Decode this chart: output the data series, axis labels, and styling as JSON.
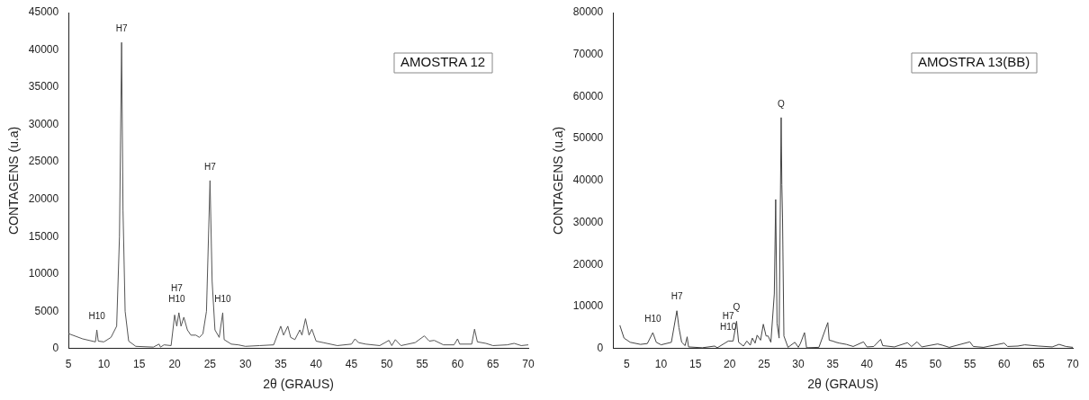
{
  "chart_data": [
    {
      "type": "line",
      "xlabel": "2θ (GRAUS)",
      "ylabel": "CONTAGENS (u.a)",
      "xlim": [
        5,
        70
      ],
      "ylim": [
        0,
        45000
      ],
      "xticks": [
        5,
        10,
        15,
        20,
        25,
        30,
        35,
        40,
        45,
        50,
        55,
        60,
        65,
        70
      ],
      "yticks": [
        0,
        5000,
        10000,
        15000,
        20000,
        25000,
        30000,
        35000,
        40000,
        45000
      ],
      "grid": false,
      "legend": false,
      "marker": "none",
      "line_style": "solid",
      "series": [
        {
          "color": "#555555",
          "x": [
            5,
            7,
            8.8,
            9,
            9.2,
            10,
            11,
            11.8,
            12.2,
            12.5,
            12.7,
            13,
            13.5,
            14.5,
            17,
            17.8,
            18,
            18.5,
            19.5,
            20,
            20.3,
            20.6,
            20.9,
            21.3,
            21.8,
            22.3,
            23,
            23.5,
            24,
            24.5,
            25,
            25.3,
            25.7,
            26.3,
            26.8,
            27,
            28,
            29,
            30,
            32,
            34,
            35,
            35.4,
            36,
            36.4,
            37,
            37.7,
            38,
            38.5,
            39,
            39.4,
            40,
            41,
            43,
            45,
            45.5,
            46,
            47,
            49,
            50.3,
            50.7,
            51.2,
            52,
            54,
            55.3,
            56,
            56.7,
            58,
            59.5,
            60,
            60.3,
            62,
            62.4,
            62.8,
            64,
            65,
            67,
            68,
            69,
            70
          ],
          "values": [
            2000,
            1300,
            900,
            2500,
            1000,
            900,
            1500,
            3000,
            15000,
            41000,
            18500,
            5000,
            1000,
            300,
            200,
            600,
            200,
            500,
            400,
            4500,
            3000,
            4800,
            3000,
            4200,
            2500,
            1800,
            1800,
            1500,
            2000,
            5000,
            22500,
            9000,
            2500,
            1500,
            4800,
            1200,
            600,
            500,
            300,
            400,
            500,
            3000,
            1800,
            3000,
            1500,
            1200,
            2500,
            1800,
            4000,
            1800,
            2600,
            1000,
            800,
            400,
            600,
            1300,
            800,
            600,
            400,
            1100,
            400,
            1200,
            400,
            800,
            1700,
            1000,
            1100,
            500,
            500,
            1300,
            600,
            600,
            2600,
            900,
            700,
            400,
            500,
            700,
            400,
            500
          ]
        }
      ],
      "annotations": [
        "AMOSTRA 12",
        {
          "text": "H10",
          "x": 9,
          "y": 2500
        },
        {
          "text": "H7",
          "x": 12.5,
          "y": 41000
        },
        {
          "text": "H10",
          "x": 20.3,
          "y": 4800
        },
        {
          "text": "H7",
          "x": 20.3,
          "y": 4800
        },
        {
          "text": "H7",
          "x": 25,
          "y": 22500
        },
        {
          "text": "H10",
          "x": 26.8,
          "y": 4800
        }
      ]
    },
    {
      "type": "line",
      "xlabel": "2θ (GRAUS)",
      "ylabel": "CONTAGENS (u.a)",
      "xlim": [
        3,
        70
      ],
      "ylim": [
        0,
        80000
      ],
      "xticks": [
        5,
        10,
        15,
        20,
        25,
        30,
        35,
        40,
        45,
        50,
        55,
        60,
        65,
        70
      ],
      "yticks": [
        0,
        10000,
        20000,
        30000,
        40000,
        50000,
        60000,
        70000,
        80000
      ],
      "grid": false,
      "legend": false,
      "marker": "none",
      "line_style": "solid",
      "series": [
        {
          "color": "#444444",
          "x": [
            4,
            4.6,
            5.5,
            7,
            8,
            8.8,
            9.3,
            10,
            11.5,
            12.3,
            12.6,
            13,
            13.5,
            13.8,
            14,
            16,
            17.8,
            18.2,
            19.8,
            20.5,
            21,
            21.3,
            22,
            22.5,
            23,
            23.3,
            23.7,
            24,
            24.5,
            24.9,
            25.3,
            25.6,
            26,
            26.5,
            26.7,
            26.9,
            27.2,
            27.5,
            27.6,
            27.7,
            27.9,
            28.5,
            29.5,
            30,
            30.3,
            30.9,
            31.2,
            33,
            34.3,
            34.5,
            35,
            35.5,
            36,
            37,
            38,
            39.5,
            40,
            41,
            42,
            42.3,
            44,
            45.9,
            46.5,
            47.3,
            48,
            50.3,
            51,
            52,
            55,
            55.5,
            57,
            60,
            60.5,
            62,
            63,
            65,
            67,
            68,
            69,
            70
          ],
          "values": [
            5500,
            2500,
            1500,
            1000,
            1200,
            3800,
            1500,
            900,
            1500,
            9000,
            5000,
            1500,
            700,
            2800,
            400,
            200,
            600,
            200,
            1800,
            1800,
            6500,
            1500,
            600,
            1800,
            800,
            2500,
            1300,
            3200,
            2000,
            5800,
            3000,
            3000,
            1500,
            13000,
            35500,
            6000,
            2500,
            55000,
            39000,
            31000,
            3000,
            300,
            1500,
            300,
            1200,
            3800,
            200,
            300,
            6200,
            2000,
            1800,
            1500,
            1300,
            1000,
            500,
            1600,
            400,
            500,
            2200,
            700,
            400,
            1400,
            500,
            1600,
            400,
            1100,
            800,
            300,
            1600,
            500,
            300,
            1300,
            500,
            600,
            900,
            600,
            400,
            1000,
            500,
            300
          ]
        }
      ],
      "annotations": [
        "AMOSTRA 13(BB)",
        {
          "text": "H10",
          "x": 8.8,
          "y": 3800
        },
        {
          "text": "H7",
          "x": 12.3,
          "y": 9000
        },
        {
          "text": "H10",
          "x": 19.8,
          "y": 1800
        },
        {
          "text": "H7",
          "x": 19.8,
          "y": 1800
        },
        {
          "text": "Q",
          "x": 21,
          "y": 6500
        },
        {
          "text": "Q",
          "x": 27.5,
          "y": 55000
        }
      ]
    }
  ]
}
